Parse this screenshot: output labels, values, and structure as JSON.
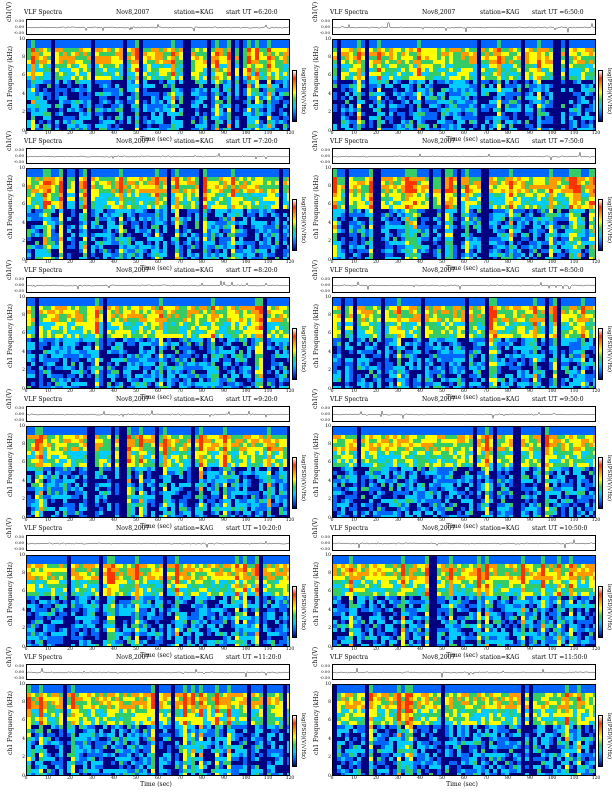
{
  "common": {
    "title_label": "VLF Spectra",
    "date": "Nov8,2007",
    "station": "station=KAG",
    "ch_axis_label": "ch1(V)",
    "freq_axis_label": "ch1 Frequency (kHz)",
    "x_axis_label": "Time (sec)",
    "colorbar_label": "log(PSD)(V/√Hz)",
    "ch_ticks": [
      "0.50",
      "0.00",
      "-0.50"
    ],
    "freq_ticks": [
      "10",
      "8",
      "6",
      "4",
      "2",
      "0"
    ],
    "time_ticks": [
      "0",
      "10",
      "20",
      "30",
      "40",
      "50",
      "60",
      "70",
      "80",
      "90",
      "100",
      "110",
      "120"
    ]
  },
  "panels": [
    {
      "start": "start UT =6:20:0"
    },
    {
      "start": "start UT =6:50:0"
    },
    {
      "start": "start UT =7:20:0"
    },
    {
      "start": "start UT =7:50:0"
    },
    {
      "start": "start UT =8:20:0"
    },
    {
      "start": "start UT =8:50:0"
    },
    {
      "start": "start UT =9:20:0"
    },
    {
      "start": "start UT =9:50:0"
    },
    {
      "start": "start UT =10:20:0"
    },
    {
      "start": "start UT =10:50:0"
    },
    {
      "start": "start UT =11:20:0"
    },
    {
      "start": "start UT =11:50:0"
    }
  ],
  "chart_data": {
    "type": "heatmap",
    "title": "VLF Spectra",
    "xlabel": "Time (sec)",
    "ylabel": "ch1 Frequency (kHz)",
    "xlim": [
      0,
      120
    ],
    "ylim": [
      0,
      10
    ],
    "colors": [
      "#000080",
      "#0066ff",
      "#00ccff",
      "#33cc66",
      "#ffff00",
      "#ff9900",
      "#ff3300"
    ]
  }
}
